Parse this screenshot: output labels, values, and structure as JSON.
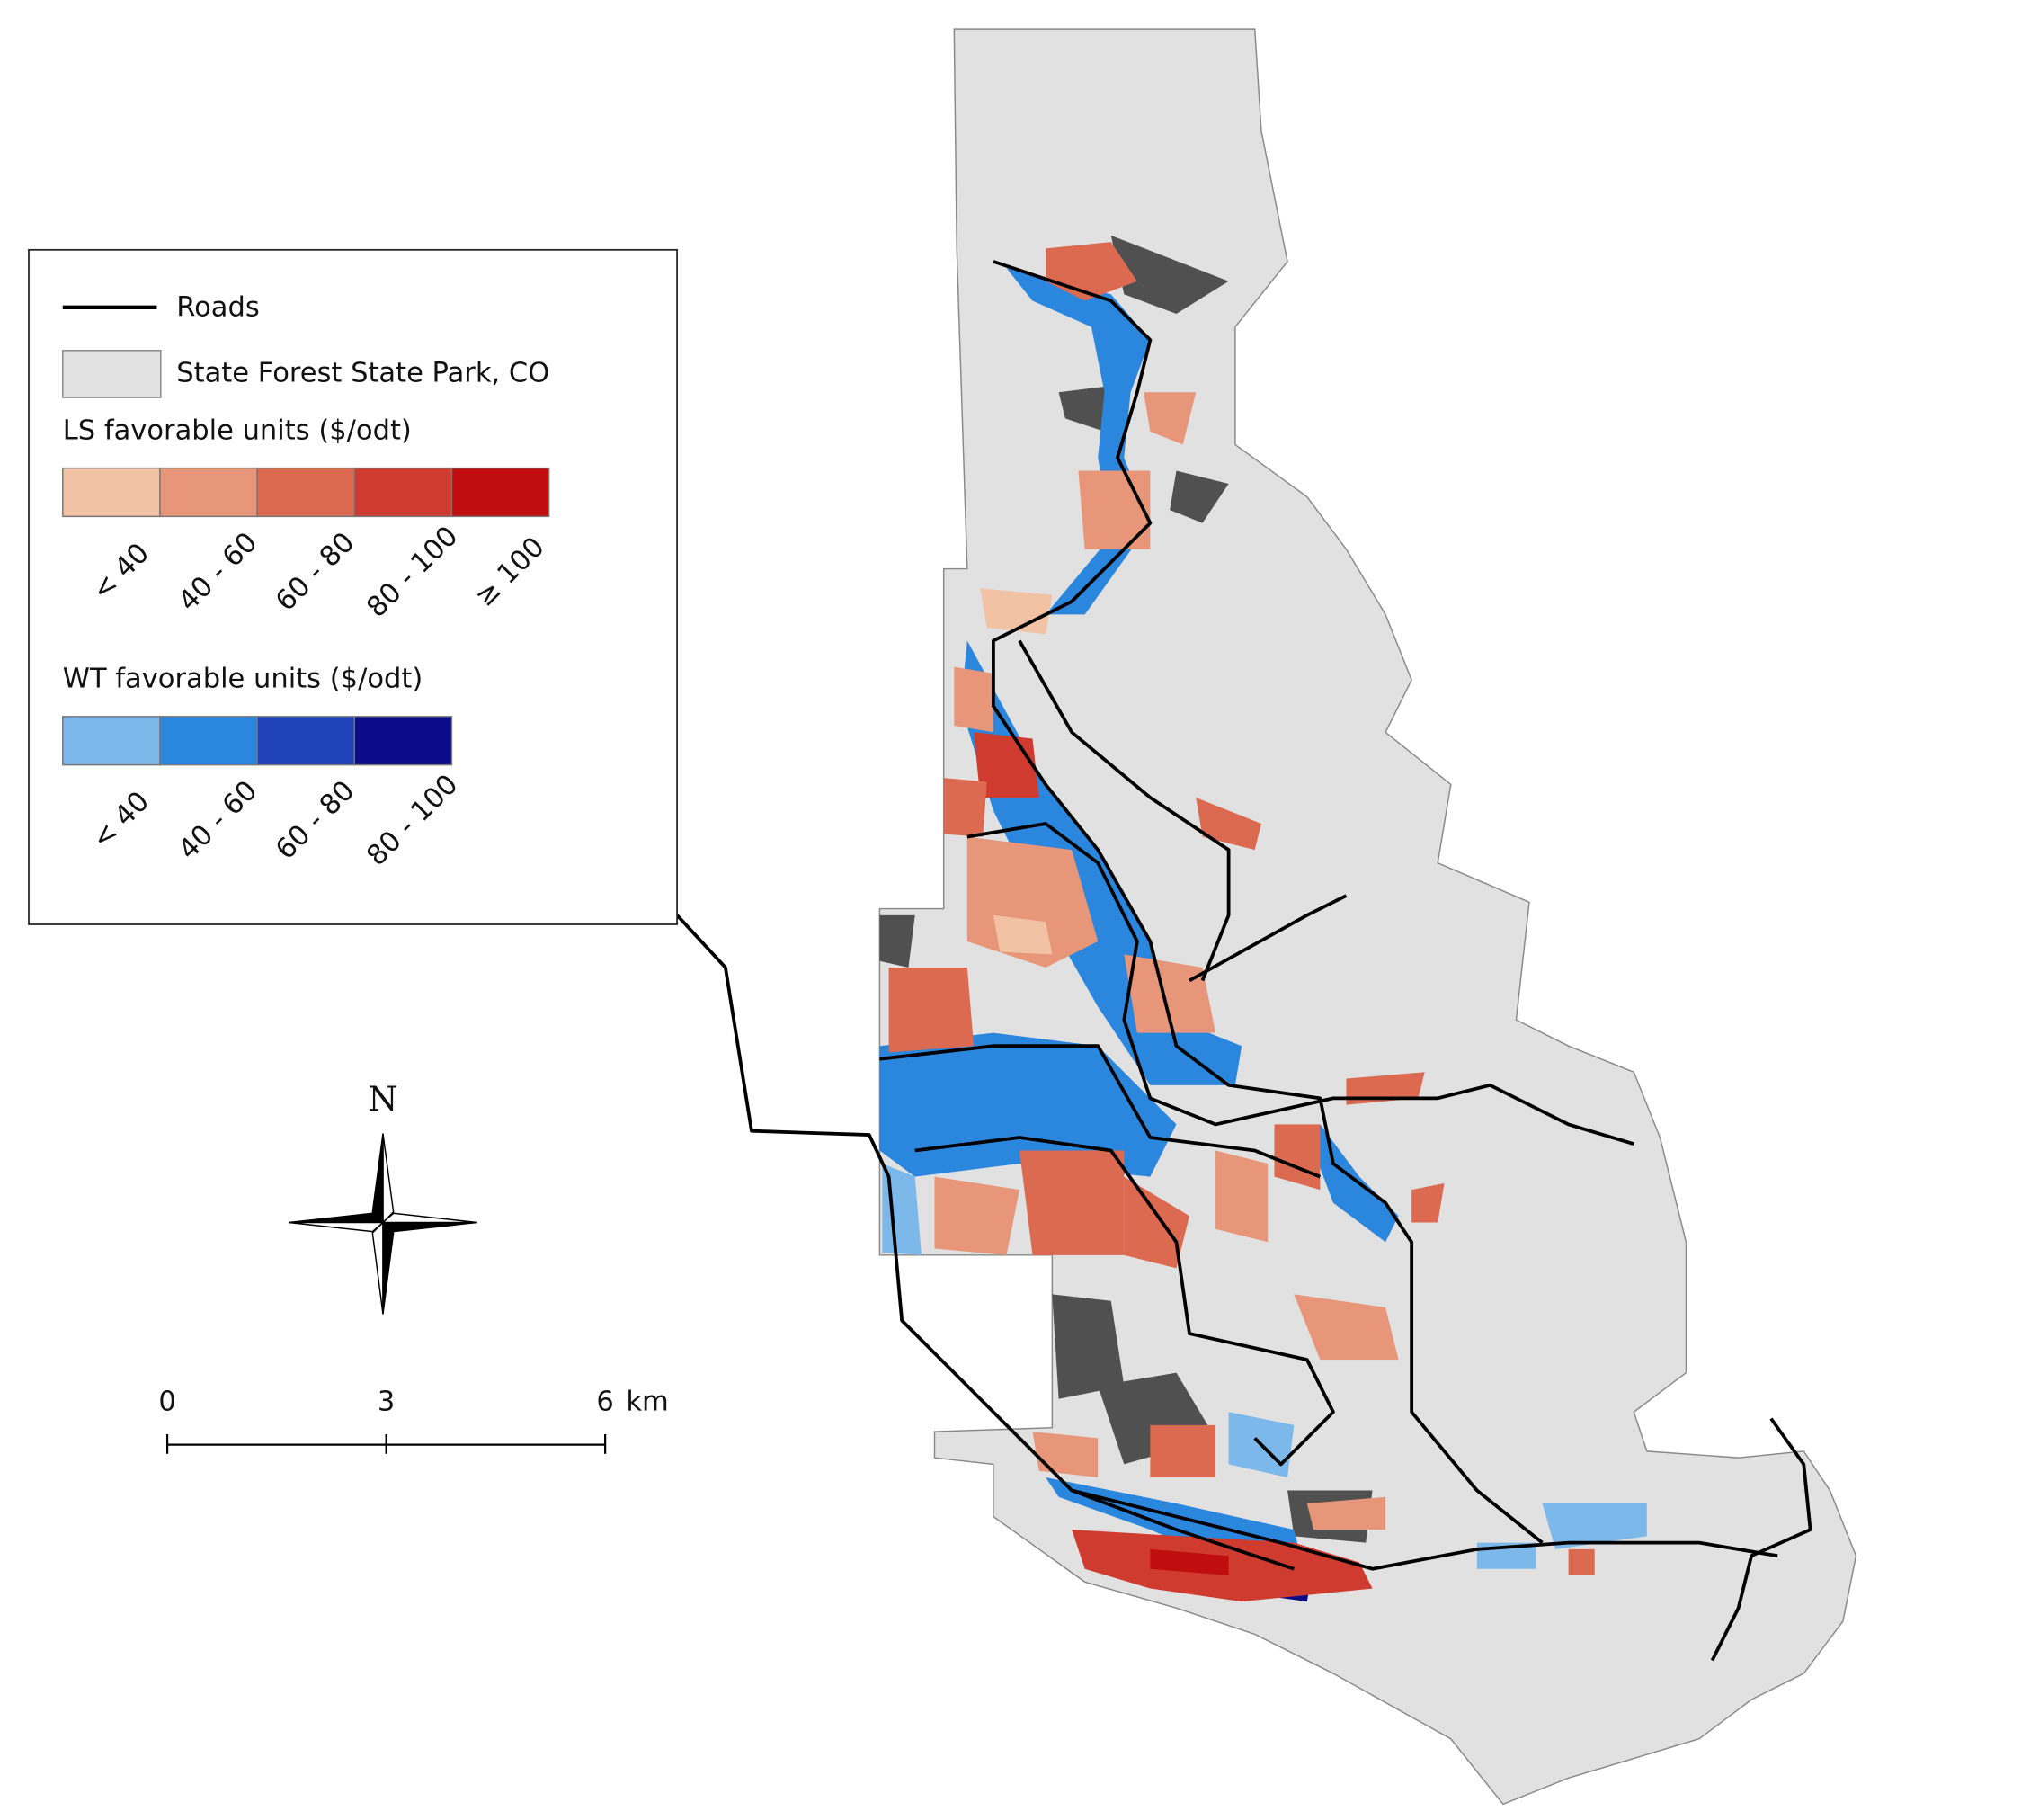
{
  "legend": {
    "roads": "Roads",
    "park": "State Forest State Park, CO",
    "ls_title": "LS favorable units ($/odt)",
    "ls_classes": [
      {
        "label": "< 40",
        "color": "#f2c2a4"
      },
      {
        "label": "40 - 60",
        "color": "#e8967a"
      },
      {
        "label": "60 - 80",
        "color": "#dc6a50"
      },
      {
        "label": "80 - 100",
        "color": "#cf3b2e"
      },
      {
        "label": "≥ 100",
        "color": "#c00d0d"
      }
    ],
    "wt_title": "WT favorable units ($/odt)",
    "wt_classes": [
      {
        "label": "< 40",
        "color": "#7db8ea"
      },
      {
        "label": "40 - 60",
        "color": "#2b86de"
      },
      {
        "label": "60 - 80",
        "color": "#1f42b8"
      },
      {
        "label": "80 - 100",
        "color": "#0c0c8a"
      }
    ]
  },
  "north": "N",
  "scale_bar": {
    "ticks": [
      0,
      3,
      6
    ],
    "unit": "km"
  }
}
